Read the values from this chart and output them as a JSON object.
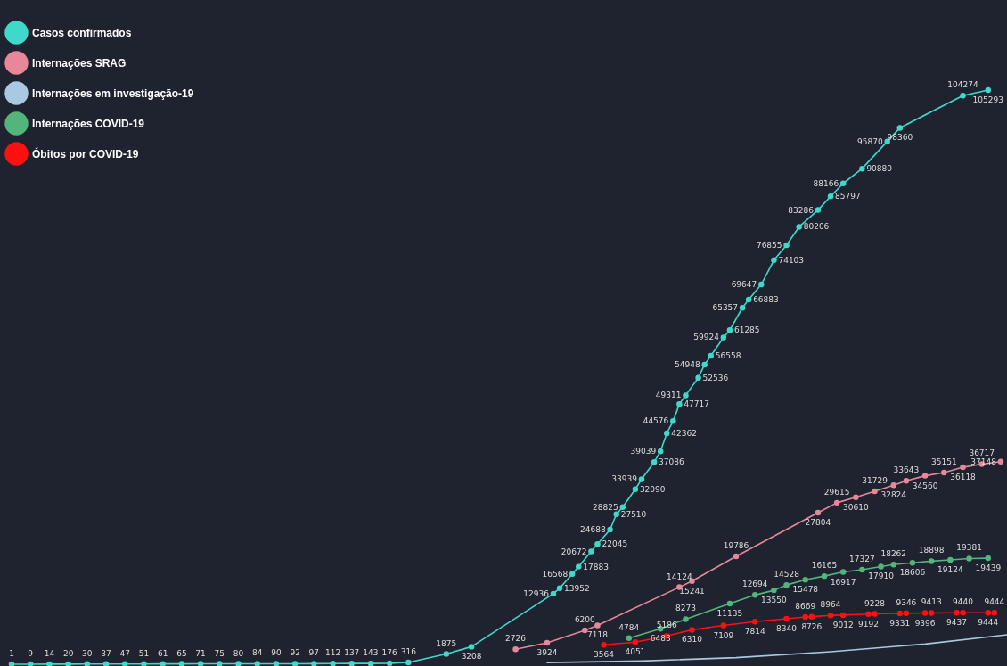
{
  "chart_data": {
    "type": "line",
    "categories": [
      null,
      null,
      null,
      null,
      null,
      null,
      null,
      null,
      null,
      null,
      null,
      null,
      null,
      null,
      null,
      null,
      null,
      null,
      null,
      null,
      null,
      null,
      null,
      null,
      null,
      null,
      null,
      null,
      null,
      null,
      null,
      null,
      null,
      null,
      null,
      null,
      null,
      null,
      null,
      null,
      null,
      null,
      null,
      null,
      null,
      null,
      null,
      null,
      null,
      null,
      null,
      null,
      null,
      null,
      null,
      null,
      null,
      null,
      null,
      null,
      null,
      null,
      null,
      null,
      null,
      null,
      null,
      null,
      null,
      null,
      null,
      null,
      null,
      null,
      null,
      null,
      null,
      null,
      null,
      null,
      null,
      null,
      null,
      null,
      null,
      null,
      null,
      null,
      null,
      null,
      null,
      null,
      null,
      null,
      null,
      null,
      null,
      null,
      null,
      null,
      null,
      null,
      null,
      null,
      null,
      null,
      null,
      null,
      null,
      null,
      null,
      null,
      null,
      null,
      null,
      null,
      null,
      null,
      null,
      null,
      null,
      null,
      null,
      null,
      null,
      null,
      null,
      null,
      null,
      null,
      null,
      null,
      null,
      null,
      null,
      null,
      null,
      null,
      null,
      null,
      null,
      null,
      null,
      null,
      null,
      null,
      null,
      null,
      null,
      null,
      null,
      null,
      null,
      null,
      null,
      null,
      null,
      null,
      null
    ],
    "series": [
      {
        "name": "Casos confirmados",
        "color": "#3fd9cc",
        "values": [
          1,
          null,
          null,
          9,
          null,
          null,
          14,
          null,
          null,
          20,
          null,
          null,
          30,
          null,
          null,
          37,
          null,
          null,
          47,
          null,
          null,
          51,
          null,
          null,
          61,
          null,
          null,
          65,
          null,
          null,
          71,
          null,
          null,
          75,
          null,
          null,
          80,
          null,
          null,
          84,
          null,
          null,
          90,
          null,
          null,
          92,
          null,
          null,
          97,
          null,
          null,
          112,
          null,
          null,
          137,
          null,
          null,
          143,
          null,
          null,
          176,
          null,
          null,
          316,
          null,
          null,
          null,
          null,
          null,
          1875,
          null,
          null,
          null,
          3208,
          null,
          null,
          null,
          null,
          null,
          null,
          null,
          null,
          null,
          null,
          null,
          null,
          12936,
          13952,
          null,
          16568,
          17883,
          null,
          20672,
          22045,
          null,
          24688,
          27510,
          28825,
          null,
          32090,
          33939,
          null,
          37086,
          39039,
          42362,
          44576,
          47717,
          49311,
          null,
          52536,
          54948,
          56558,
          null,
          59924,
          61285,
          null,
          65357,
          66883,
          null,
          69647,
          null,
          74103,
          null,
          76855,
          null,
          80206,
          null,
          null,
          83286,
          null,
          85797,
          null,
          88166,
          null,
          null,
          90880,
          null,
          null,
          null,
          95870,
          null,
          98360,
          null,
          null,
          null,
          null,
          null,
          null,
          null,
          null,
          null,
          104274,
          null,
          null,
          null,
          105293,
          null,
          null,
          null
        ]
      },
      {
        "name": "Internações SRAG",
        "color": "#e8879a",
        "values": [
          null,
          null,
          null,
          null,
          null,
          null,
          null,
          null,
          null,
          null,
          null,
          null,
          null,
          null,
          null,
          null,
          null,
          null,
          null,
          null,
          null,
          null,
          null,
          null,
          null,
          null,
          null,
          null,
          null,
          null,
          null,
          null,
          null,
          null,
          null,
          null,
          null,
          null,
          null,
          null,
          null,
          null,
          null,
          null,
          null,
          null,
          null,
          null,
          null,
          null,
          null,
          null,
          null,
          null,
          null,
          null,
          null,
          null,
          null,
          null,
          null,
          null,
          null,
          null,
          null,
          null,
          null,
          null,
          null,
          null,
          null,
          null,
          null,
          null,
          null,
          null,
          null,
          null,
          null,
          null,
          2726,
          null,
          null,
          null,
          null,
          3924,
          null,
          null,
          null,
          null,
          null,
          6200,
          null,
          7118,
          null,
          null,
          null,
          null,
          null,
          null,
          null,
          null,
          null,
          null,
          null,
          null,
          14124,
          null,
          15241,
          null,
          null,
          null,
          null,
          null,
          null,
          19786,
          null,
          null,
          null,
          null,
          null,
          null,
          null,
          null,
          null,
          null,
          null,
          null,
          27804,
          null,
          null,
          29615,
          null,
          null,
          30610,
          null,
          null,
          31729,
          null,
          null,
          32824,
          null,
          33643,
          null,
          null,
          34560,
          null,
          null,
          35151,
          null,
          null,
          36118,
          null,
          null,
          36717,
          null,
          null,
          37148,
          null
        ]
      },
      {
        "name": "Internações em investigação-19",
        "color": "#a9c9e3",
        "marker": "none",
        "data_labels": false,
        "values": [
          null,
          null,
          null,
          null,
          null,
          null,
          null,
          null,
          null,
          null,
          null,
          null,
          null,
          null,
          null,
          null,
          null,
          null,
          null,
          null,
          null,
          null,
          null,
          null,
          null,
          null,
          null,
          null,
          null,
          null,
          null,
          null,
          null,
          null,
          null,
          null,
          null,
          null,
          null,
          null,
          null,
          null,
          null,
          null,
          null,
          null,
          null,
          null,
          null,
          null,
          null,
          null,
          null,
          null,
          null,
          null,
          null,
          null,
          null,
          null,
          null,
          null,
          null,
          null,
          null,
          null,
          null,
          null,
          null,
          null,
          null,
          null,
          null,
          null,
          null,
          null,
          null,
          null,
          null,
          null,
          null,
          null,
          null,
          null,
          null,
          300,
          null,
          null,
          null,
          null,
          null,
          null,
          null,
          null,
          null,
          null,
          null,
          null,
          null,
          null,
          600,
          null,
          null,
          null,
          null,
          null,
          null,
          null,
          null,
          null,
          null,
          null,
          null,
          null,
          null,
          1200,
          null,
          null,
          null,
          null,
          null,
          null,
          null,
          null,
          null,
          null,
          null,
          null,
          null,
          null,
          2300,
          null,
          null,
          null,
          null,
          null,
          null,
          null,
          null,
          null,
          null,
          null,
          null,
          null,
          null,
          3700,
          null,
          null,
          null,
          null,
          null,
          null,
          null,
          null,
          null,
          null,
          null,
          null,
          5400
        ]
      },
      {
        "name": "Internações COVID-19",
        "color": "#52b57c",
        "values": [
          null,
          null,
          null,
          null,
          null,
          null,
          null,
          null,
          null,
          null,
          null,
          null,
          null,
          null,
          null,
          null,
          null,
          null,
          null,
          null,
          null,
          null,
          null,
          null,
          null,
          null,
          null,
          null,
          null,
          null,
          null,
          null,
          null,
          null,
          null,
          null,
          null,
          null,
          null,
          null,
          null,
          null,
          null,
          null,
          null,
          null,
          null,
          null,
          null,
          null,
          null,
          null,
          null,
          null,
          null,
          null,
          null,
          null,
          null,
          null,
          null,
          null,
          null,
          null,
          null,
          null,
          null,
          null,
          null,
          null,
          null,
          null,
          null,
          null,
          null,
          null,
          null,
          null,
          null,
          null,
          null,
          null,
          null,
          null,
          null,
          null,
          null,
          null,
          null,
          null,
          null,
          null,
          null,
          null,
          null,
          null,
          null,
          null,
          4784,
          null,
          null,
          null,
          null,
          6483,
          null,
          null,
          null,
          8273,
          null,
          null,
          null,
          null,
          null,
          null,
          11135,
          null,
          null,
          null,
          12694,
          null,
          null,
          13550,
          null,
          14528,
          null,
          null,
          15478,
          null,
          null,
          16165,
          null,
          null,
          16917,
          null,
          null,
          17327,
          null,
          null,
          17910,
          null,
          18262,
          null,
          null,
          18606,
          null,
          null,
          18898,
          null,
          null,
          19124,
          null,
          null,
          19381,
          null,
          null,
          19439,
          null,
          null,
          null
        ]
      },
      {
        "name": "Óbitos por COVID-19",
        "color": "#ff1010",
        "values": [
          null,
          null,
          null,
          null,
          null,
          null,
          null,
          null,
          null,
          null,
          null,
          null,
          null,
          null,
          null,
          null,
          null,
          null,
          null,
          null,
          null,
          null,
          null,
          null,
          null,
          null,
          null,
          null,
          null,
          null,
          null,
          null,
          null,
          null,
          null,
          null,
          null,
          null,
          null,
          null,
          null,
          null,
          null,
          null,
          null,
          null,
          null,
          null,
          null,
          null,
          null,
          null,
          null,
          null,
          null,
          null,
          null,
          null,
          null,
          null,
          null,
          null,
          null,
          null,
          null,
          null,
          null,
          null,
          null,
          null,
          null,
          null,
          null,
          null,
          null,
          null,
          null,
          null,
          null,
          null,
          null,
          null,
          null,
          null,
          null,
          null,
          null,
          null,
          null,
          null,
          null,
          null,
          null,
          null,
          3564,
          null,
          null,
          null,
          null,
          4051,
          null,
          null,
          null,
          null,
          5186,
          null,
          null,
          null,
          6310,
          null,
          null,
          null,
          null,
          7109,
          null,
          null,
          null,
          null,
          7814,
          null,
          null,
          null,
          null,
          8340,
          null,
          null,
          8669,
          8726,
          null,
          null,
          8964,
          null,
          9012,
          null,
          null,
          null,
          9192,
          9228,
          null,
          null,
          null,
          9331,
          9346,
          null,
          null,
          9396,
          9413,
          null,
          null,
          null,
          9437,
          9440,
          null,
          null,
          null,
          9444,
          9444,
          null,
          null
        ]
      }
    ],
    "data_labels": true,
    "marker": "circle",
    "legend": "top left",
    "tick_labels": false
  }
}
